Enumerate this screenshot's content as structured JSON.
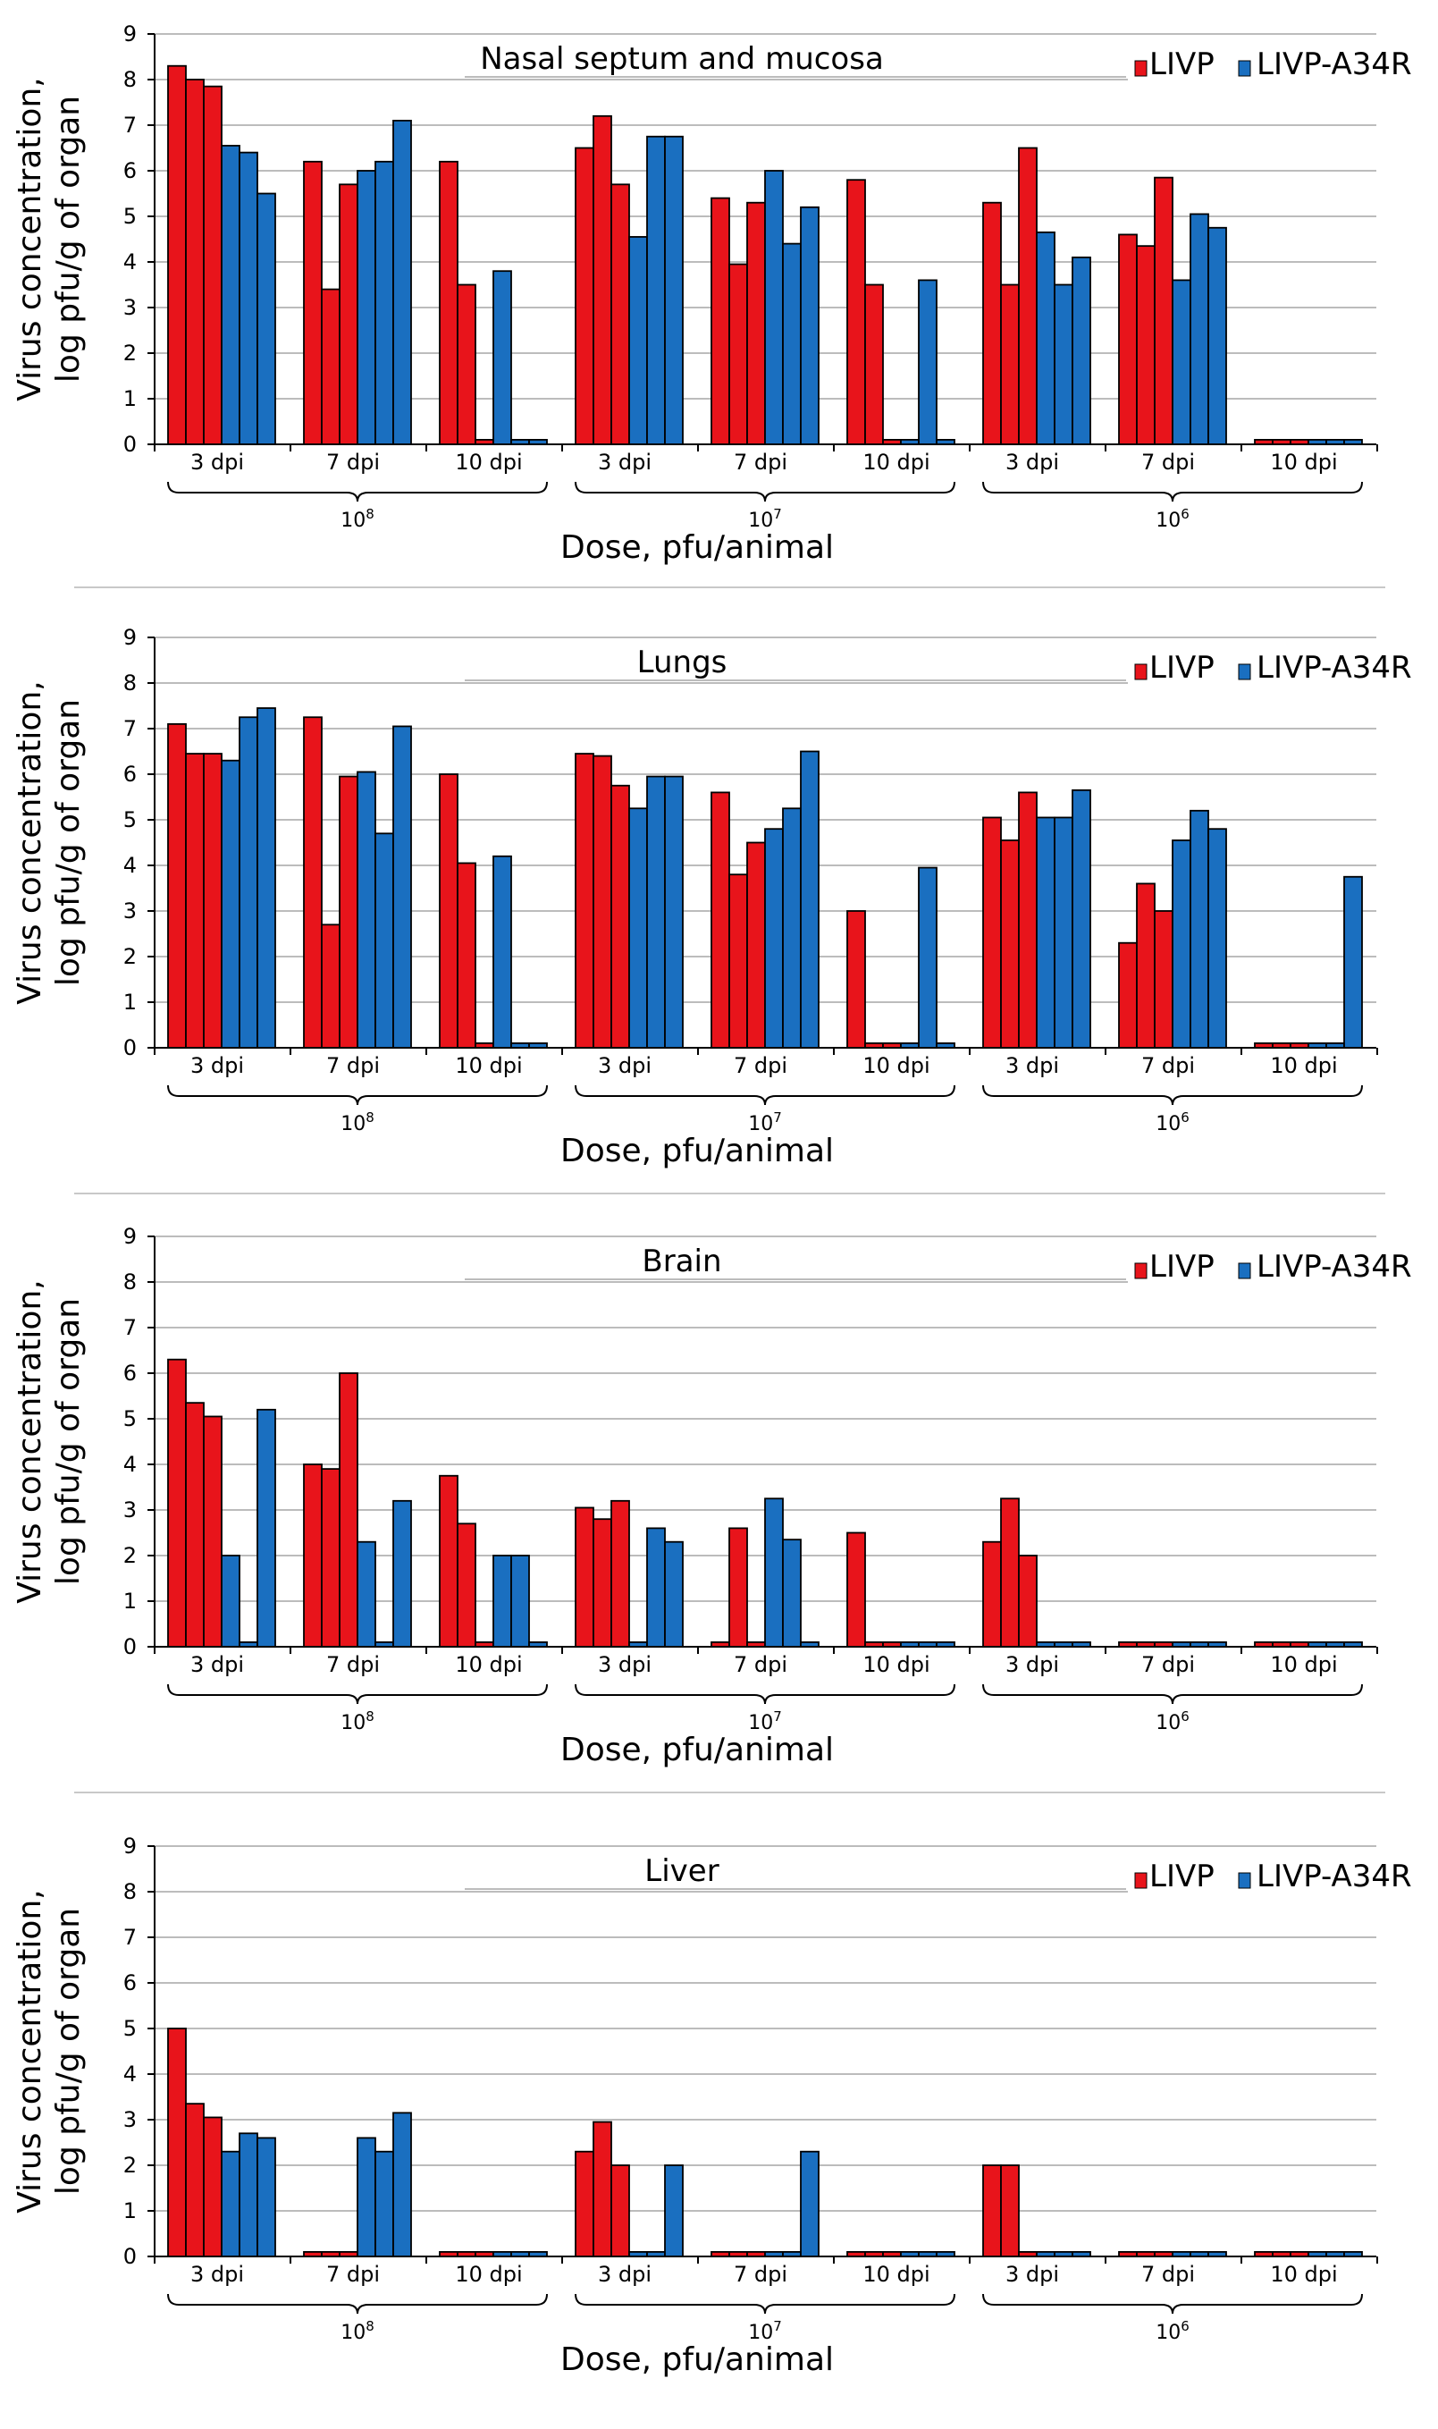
{
  "figure": {
    "ylabel_line1": "Virus concentration,",
    "ylabel_line2": "log pfu/g of organ",
    "xlabel": "Dose, pfu/animal",
    "legend": [
      "LIVP",
      "LIVP-A34R"
    ],
    "colors": {
      "LIVP": "#e8141b",
      "LIVP-A34R": "#1a6fc0"
    },
    "time_labels": [
      "3 dpi",
      "7 dpi",
      "10 dpi"
    ],
    "dose_labels": [
      {
        "base": "10",
        "exp": "8"
      },
      {
        "base": "10",
        "exp": "7"
      },
      {
        "base": "10",
        "exp": "6"
      }
    ],
    "yticks": [
      "0",
      "1",
      "2",
      "3",
      "4",
      "5",
      "6",
      "7",
      "8",
      "9"
    ]
  },
  "chart_data": [
    {
      "type": "bar",
      "title": "Nasal septum and mucosa",
      "ylim": [
        0,
        9
      ],
      "groups": [
        {
          "dose": "10^8",
          "time": "3 dpi",
          "LIVP": [
            8.3,
            8.0,
            7.85
          ],
          "LIVP-A34R": [
            6.55,
            6.4,
            5.5
          ]
        },
        {
          "dose": "10^8",
          "time": "7 dpi",
          "LIVP": [
            6.2,
            3.4,
            5.7
          ],
          "LIVP-A34R": [
            6.0,
            6.2,
            7.1
          ]
        },
        {
          "dose": "10^8",
          "time": "10 dpi",
          "LIVP": [
            6.2,
            3.5,
            0.1
          ],
          "LIVP-A34R": [
            3.8,
            0.1,
            0.1
          ]
        },
        {
          "dose": "10^7",
          "time": "3 dpi",
          "LIVP": [
            6.5,
            7.2,
            5.7
          ],
          "LIVP-A34R": [
            4.55,
            6.75,
            6.75
          ]
        },
        {
          "dose": "10^7",
          "time": "7 dpi",
          "LIVP": [
            5.4,
            3.95,
            5.3
          ],
          "LIVP-A34R": [
            6.0,
            4.4,
            5.2
          ]
        },
        {
          "dose": "10^7",
          "time": "10 dpi",
          "LIVP": [
            5.8,
            3.5,
            0.1
          ],
          "LIVP-A34R": [
            0.1,
            3.6,
            0.1
          ]
        },
        {
          "dose": "10^6",
          "time": "3 dpi",
          "LIVP": [
            5.3,
            3.5,
            6.5
          ],
          "LIVP-A34R": [
            4.65,
            3.5,
            4.1
          ]
        },
        {
          "dose": "10^6",
          "time": "7 dpi",
          "LIVP": [
            4.6,
            4.35,
            5.85
          ],
          "LIVP-A34R": [
            3.6,
            5.05,
            4.75
          ]
        },
        {
          "dose": "10^6",
          "time": "10 dpi",
          "LIVP": [
            0.1,
            0.1,
            0.1
          ],
          "LIVP-A34R": [
            0.1,
            0.1,
            0.1
          ]
        }
      ]
    },
    {
      "type": "bar",
      "title": "Lungs",
      "ylim": [
        0,
        9
      ],
      "groups": [
        {
          "dose": "10^8",
          "time": "3 dpi",
          "LIVP": [
            7.1,
            6.45,
            6.45
          ],
          "LIVP-A34R": [
            6.3,
            7.25,
            7.45
          ]
        },
        {
          "dose": "10^8",
          "time": "7 dpi",
          "LIVP": [
            7.25,
            2.7,
            5.95
          ],
          "LIVP-A34R": [
            6.05,
            4.7,
            7.05
          ]
        },
        {
          "dose": "10^8",
          "time": "10 dpi",
          "LIVP": [
            6.0,
            4.05,
            0.1
          ],
          "LIVP-A34R": [
            4.2,
            0.1,
            0.1
          ]
        },
        {
          "dose": "10^7",
          "time": "3 dpi",
          "LIVP": [
            6.45,
            6.4,
            5.75
          ],
          "LIVP-A34R": [
            5.25,
            5.95,
            5.95
          ]
        },
        {
          "dose": "10^7",
          "time": "7 dpi",
          "LIVP": [
            5.6,
            3.8,
            4.5
          ],
          "LIVP-A34R": [
            4.8,
            5.25,
            6.5
          ]
        },
        {
          "dose": "10^7",
          "time": "10 dpi",
          "LIVP": [
            3.0,
            0.1,
            0.1
          ],
          "LIVP-A34R": [
            0.1,
            3.95,
            0.1
          ]
        },
        {
          "dose": "10^6",
          "time": "3 dpi",
          "LIVP": [
            5.05,
            4.55,
            5.6
          ],
          "LIVP-A34R": [
            5.05,
            5.05,
            5.65
          ]
        },
        {
          "dose": "10^6",
          "time": "7 dpi",
          "LIVP": [
            2.3,
            3.6,
            3.0
          ],
          "LIVP-A34R": [
            4.55,
            5.2,
            4.8
          ]
        },
        {
          "dose": "10^6",
          "time": "10 dpi",
          "LIVP": [
            0.1,
            0.1,
            0.1
          ],
          "LIVP-A34R": [
            0.1,
            0.1,
            3.75
          ]
        }
      ]
    },
    {
      "type": "bar",
      "title": "Brain",
      "ylim": [
        0,
        9
      ],
      "groups": [
        {
          "dose": "10^8",
          "time": "3 dpi",
          "LIVP": [
            6.3,
            5.35,
            5.05
          ],
          "LIVP-A34R": [
            2.0,
            0.1,
            5.2
          ]
        },
        {
          "dose": "10^8",
          "time": "7 dpi",
          "LIVP": [
            4.0,
            3.9,
            6.0
          ],
          "LIVP-A34R": [
            2.3,
            0.1,
            3.2
          ]
        },
        {
          "dose": "10^8",
          "time": "10 dpi",
          "LIVP": [
            3.75,
            2.7,
            0.1
          ],
          "LIVP-A34R": [
            2.0,
            2.0,
            0.1
          ]
        },
        {
          "dose": "10^7",
          "time": "3 dpi",
          "LIVP": [
            3.05,
            2.8,
            3.2
          ],
          "LIVP-A34R": [
            0.1,
            2.6,
            2.3
          ]
        },
        {
          "dose": "10^7",
          "time": "7 dpi",
          "LIVP": [
            0.1,
            2.6,
            0.1
          ],
          "LIVP-A34R": [
            3.25,
            2.35,
            0.1
          ]
        },
        {
          "dose": "10^7",
          "time": "10 dpi",
          "LIVP": [
            2.5,
            0.1,
            0.1
          ],
          "LIVP-A34R": [
            0.1,
            0.1,
            0.1
          ]
        },
        {
          "dose": "10^6",
          "time": "3 dpi",
          "LIVP": [
            2.3,
            3.25,
            2.0
          ],
          "LIVP-A34R": [
            0.1,
            0.1,
            0.1
          ]
        },
        {
          "dose": "10^6",
          "time": "7 dpi",
          "LIVP": [
            0.1,
            0.1,
            0.1
          ],
          "LIVP-A34R": [
            0.1,
            0.1,
            0.1
          ]
        },
        {
          "dose": "10^6",
          "time": "10 dpi",
          "LIVP": [
            0.1,
            0.1,
            0.1
          ],
          "LIVP-A34R": [
            0.1,
            0.1,
            0.1
          ]
        }
      ]
    },
    {
      "type": "bar",
      "title": "Liver",
      "ylim": [
        0,
        9
      ],
      "groups": [
        {
          "dose": "10^8",
          "time": "3 dpi",
          "LIVP": [
            5.0,
            3.35,
            3.05
          ],
          "LIVP-A34R": [
            2.3,
            2.7,
            2.6
          ]
        },
        {
          "dose": "10^8",
          "time": "7 dpi",
          "LIVP": [
            0.1,
            0.1,
            0.1
          ],
          "LIVP-A34R": [
            2.6,
            2.3,
            3.15
          ]
        },
        {
          "dose": "10^8",
          "time": "10 dpi",
          "LIVP": [
            0.1,
            0.1,
            0.1
          ],
          "LIVP-A34R": [
            0.1,
            0.1,
            0.1
          ]
        },
        {
          "dose": "10^7",
          "time": "3 dpi",
          "LIVP": [
            2.3,
            2.95,
            2.0
          ],
          "LIVP-A34R": [
            0.1,
            0.1,
            2.0
          ]
        },
        {
          "dose": "10^7",
          "time": "7 dpi",
          "LIVP": [
            0.1,
            0.1,
            0.1
          ],
          "LIVP-A34R": [
            0.1,
            0.1,
            2.3
          ]
        },
        {
          "dose": "10^7",
          "time": "10 dpi",
          "LIVP": [
            0.1,
            0.1,
            0.1
          ],
          "LIVP-A34R": [
            0.1,
            0.1,
            0.1
          ]
        },
        {
          "dose": "10^6",
          "time": "3 dpi",
          "LIVP": [
            2.0,
            2.0,
            0.1
          ],
          "LIVP-A34R": [
            0.1,
            0.1,
            0.1
          ]
        },
        {
          "dose": "10^6",
          "time": "7 dpi",
          "LIVP": [
            0.1,
            0.1,
            0.1
          ],
          "LIVP-A34R": [
            0.1,
            0.1,
            0.1
          ]
        },
        {
          "dose": "10^6",
          "time": "10 dpi",
          "LIVP": [
            0.1,
            0.1,
            0.1
          ],
          "LIVP-A34R": [
            0.1,
            0.1,
            0.1
          ]
        }
      ]
    }
  ]
}
